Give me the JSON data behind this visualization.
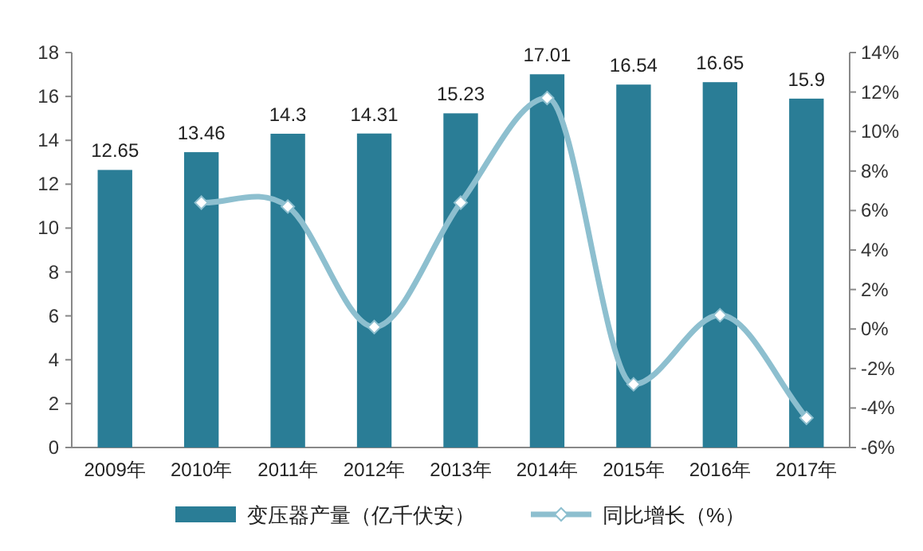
{
  "chart_data": {
    "type": "bar",
    "categories": [
      "2009年",
      "2010年",
      "2011年",
      "2012年",
      "2013年",
      "2014年",
      "2015年",
      "2016年",
      "2017年"
    ],
    "series": [
      {
        "name": "变压器产量（亿千伏安）",
        "color": "#2a7d96",
        "values": [
          12.65,
          13.46,
          14.3,
          14.31,
          15.23,
          17.01,
          16.54,
          16.65,
          15.9
        ],
        "value_labels": [
          "12.65",
          "13.46",
          "14.3",
          "14.31",
          "15.23",
          "17.01",
          "16.54",
          "16.65",
          "15.9"
        ]
      },
      {
        "name": "同比增长（%）",
        "type": "line",
        "axis": "y2",
        "color": "#8dbfcf",
        "marker": "diamond",
        "values": [
          null,
          6.4,
          6.2,
          0.1,
          6.4,
          11.7,
          -2.8,
          0.7,
          -4.5
        ]
      }
    ],
    "ylim": [
      0,
      18
    ],
    "yticks": [
      0,
      2,
      4,
      6,
      8,
      10,
      12,
      14,
      16,
      18
    ],
    "y2lim": [
      -6,
      14
    ],
    "y2ticks": [
      {
        "value": -6,
        "label": "-6%"
      },
      {
        "value": -4,
        "label": "-4%"
      },
      {
        "value": -2,
        "label": "-2%"
      },
      {
        "value": 0,
        "label": "0%"
      },
      {
        "value": 2,
        "label": "2%"
      },
      {
        "value": 4,
        "label": "4%"
      },
      {
        "value": 6,
        "label": "6%"
      },
      {
        "value": 8,
        "label": "8%"
      },
      {
        "value": 10,
        "label": "10%"
      },
      {
        "value": 12,
        "label": "12%"
      },
      {
        "value": 14,
        "label": "14%"
      }
    ],
    "grid": false,
    "legend": "bottom"
  }
}
